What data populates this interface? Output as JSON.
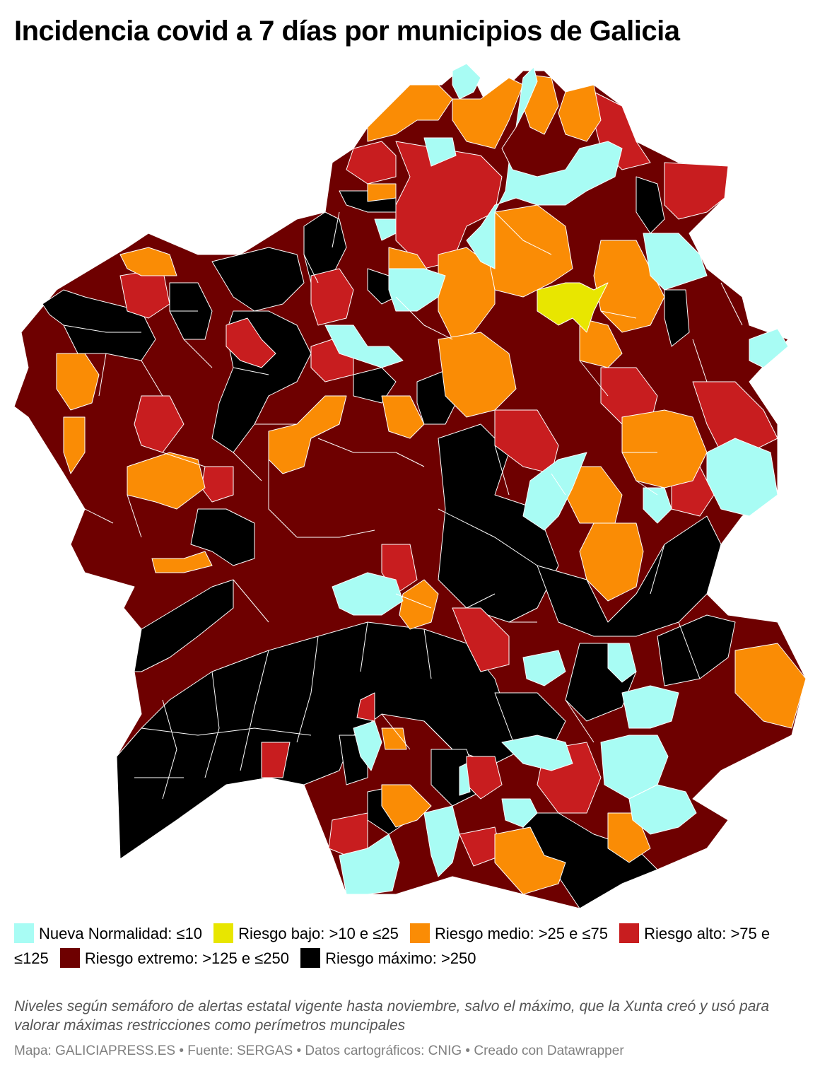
{
  "title": "Incidencia covid a 7 días por municipios de Galicia",
  "legend": [
    {
      "label": "Nueva Normalidad: ≤10",
      "color": "#a8fcf4"
    },
    {
      "label": "Riesgo bajo: >10 e ≤25",
      "color": "#e8e600"
    },
    {
      "label": "Riesgo medio: >25 e ≤75",
      "color": "#fa8c05"
    },
    {
      "label": "Riesgo alto: >75 e ≤125",
      "color": "#c81d1f"
    },
    {
      "label": "Riesgo extremo: >125 e ≤250",
      "color": "#6e0000"
    },
    {
      "label": "Riesgo máximo: >250",
      "color": "#000000"
    }
  ],
  "note": "Niveles según semáforo de alertas estatal vigente hasta noviembre, salvo el máximo, que la Xunta creó y usó para valorar máximas restricciones como perímetros muncipales",
  "footer": "Mapa: GALICIAPRESS.ES • Fuente: SERGAS • Datos cartográficos: CNIG • Creado con Datawrapper",
  "colors": {
    "background": "#ffffff",
    "note_text": "#555555",
    "footer_text": "#808080"
  }
}
